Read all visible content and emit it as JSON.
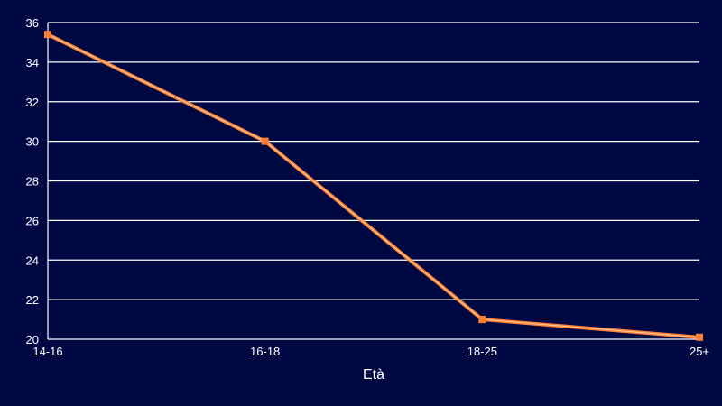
{
  "chart_data": {
    "type": "line",
    "categories": [
      "14-16",
      "16-18",
      "18-25",
      "25+"
    ],
    "series": [
      {
        "values": [
          35.4,
          30.0,
          21.0,
          20.1
        ]
      }
    ],
    "title": "",
    "xlabel": "Età",
    "ylabel": "",
    "ylim": [
      20,
      36
    ],
    "yticks": [
      20,
      22,
      24,
      26,
      28,
      30,
      32,
      34,
      36
    ],
    "grid": true,
    "legend": "none"
  },
  "colors": {
    "background": "#000844",
    "grid": "#ffffff",
    "line": "#ff7f32",
    "line_inner": "#ffd0a8",
    "marker": "#ff7f32",
    "text": "#ffffff"
  }
}
